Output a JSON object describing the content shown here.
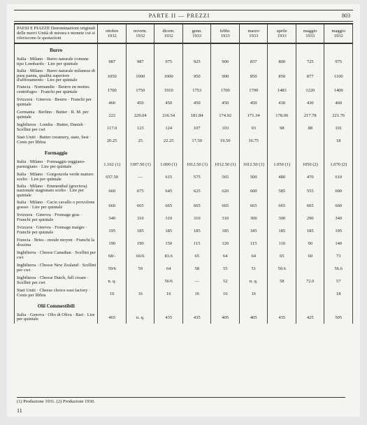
{
  "header": {
    "part": "PARTE II — PREZZI",
    "pagenum": "803"
  },
  "table": {
    "desc_header": "PAESI E PIAZZE\nDenominazioni originali delle merci\nUnità di misura\ne monete cui si riferiscono le quotazioni",
    "columns": [
      {
        "month": "ottobre",
        "year": "1932"
      },
      {
        "month": "novem.",
        "year": "1932"
      },
      {
        "month": "dicem.",
        "year": "1932"
      },
      {
        "month": "genn.",
        "year": "1933"
      },
      {
        "month": "febbr.",
        "year": "1933"
      },
      {
        "month": "marzo",
        "year": "1933"
      },
      {
        "month": "aprile",
        "year": "1933"
      },
      {
        "month": "maggio",
        "year": "1933"
      },
      {
        "month": "maggio",
        "year": "1932"
      }
    ],
    "sections": [
      {
        "title": "Burro",
        "rows": [
          {
            "label": "Italia · Milano · Burro naturale comune tipo Lombardo · Lire per quintale",
            "v": [
              "987",
              "987",
              "975",
              "925",
              "900",
              "837",
              "800",
              "725",
              "975"
            ]
          },
          {
            "label": "Italia · Milano · Burro naturale milanese di pura panna, qualità superiore d'affioramento · Lire per quintale",
            "v": [
              "1050",
              "1000",
              "1000",
              "950",
              "900",
              "850",
              "850",
              "877",
              "1100"
            ]
          },
          {
            "label": "Francia · Normandie · Beurre en mottes centrifuges · Franchi per quintale",
            "v": [
              "1700",
              "1750",
              "1910",
              "1753",
              "1700",
              "1700",
              "1483",
              "1220",
              "1400"
            ]
          },
          {
            "label": "Svizzera · Ginevra · Beurre · Franchi per quintale",
            "v": [
              "460",
              "450",
              "450",
              "450",
              "450",
              "450",
              "430",
              "430",
              "460"
            ]
          },
          {
            "label": "Germania · Berlino · Butter · R. M. per quintale",
            "v": [
              "222",
              "229.04",
              "216.54",
              "181.84",
              "174.92",
              "171.34",
              "178.00",
              "217.78",
              "221.76"
            ]
          },
          {
            "label": "Inghilterra · Londra · Butter, Danish · Scellini per cwt",
            "v": [
              "117.0",
              "123",
              "124",
              "107",
              "103",
              "93",
              "98",
              "88",
              "101"
            ]
          },
          {
            "label": "Stati Uniti · Butter creamery, state, best · Cents per libbra",
            "v": [
              "20.25",
              "25",
              "22.25",
              "17.50",
              "19.50",
              "16.75",
              "",
              "",
              "18"
            ]
          }
        ]
      },
      {
        "title": "Formaggio",
        "rows": [
          {
            "label": "Italia · Milano · Formaggio reggiano-parmigiano · Lire per quintale",
            "v": [
              "1.162 (1)",
              "1187.50 (1)",
              "1.000 (1)",
              "1012.50 (1)",
              "1012.50 (1)",
              "1012.50 (1)",
              "1.050 (1)",
              "1050 (2)",
              "1.070 (2)"
            ]
          },
          {
            "label": "Italia · Milano · Gorgonzola verde maturo scelto · Lire per quintale",
            "v": [
              "657.50",
              "—",
              "615",
              "575",
              "565",
              "500",
              "480",
              "470",
              "610"
            ]
          },
          {
            "label": "Italia · Milano · Emmenthal (gruviera) nazionale stagionato scelto · Lire per quintale",
            "v": [
              "660",
              "675",
              "645",
              "625",
              "620",
              "600",
              "585",
              "555",
              "600"
            ]
          },
          {
            "label": "Italia · Milano · Cacio cavallo o provolone grasso · Lire per quintale",
            "v": [
              "660",
              "665",
              "665",
              "665",
              "665",
              "665",
              "665",
              "665",
              "660"
            ]
          },
          {
            "label": "Svizzera · Ginevra · Fromage gras · Franchi per quintale",
            "v": [
              "340",
              "310",
              "310",
              "310",
              "310",
              "300",
              "300",
              "290",
              "340"
            ]
          },
          {
            "label": "Svizzera · Ginevra · Fromage maigre · Franchi per quintale",
            "v": [
              "195",
              "185",
              "185",
              "185",
              "185",
              "185",
              "185",
              "185",
              "195"
            ]
          },
          {
            "label": "Francia · Bries - moule moyen · Franchi la dozzina",
            "v": [
              "190",
              "190",
              "150",
              "115",
              "120",
              "115",
              "110",
              "90",
              "140"
            ]
          },
          {
            "label": "Inghilterra · Cheese Canadian · Scellini per cwt",
            "v": [
              "68/-",
              "66/6",
              "83.6",
              "65",
              "64",
              "64",
              "65",
              "60",
              "73"
            ]
          },
          {
            "label": "Inghilterra · Cheese New Zealand · Scellini per cwt",
            "v": [
              "59/6",
              "59",
              "64",
              "58",
              "55",
              "51",
              "50.6",
              "",
              "56.6"
            ]
          },
          {
            "label": "Inghilterra · Cheese Dutch, full cream · Scellini per cwt",
            "v": [
              "n. q.",
              "",
              "56/6",
              "—",
              "52",
              "n. q.",
              "58",
              "72.0",
              "57"
            ]
          },
          {
            "label": "Stati Uniti · Cheese choice east factory · Cents per libbra",
            "v": [
              "16",
              "16",
              "16",
              "16",
              "16",
              "16",
              "",
              "",
              "18"
            ]
          }
        ]
      },
      {
        "title": "Olii Commestibili",
        "rows": [
          {
            "label": "Italia · Genova · Olio di Oliva · Bari · Lire per quintale",
            "v": [
              "465",
              "n. q.",
              "435",
              "435",
              "405",
              "405",
              "435",
              "425",
              "505"
            ]
          }
        ]
      }
    ]
  },
  "footnote": "(1) Produzione 1931. (2) Produzione 1930.",
  "bottom_page": "11"
}
